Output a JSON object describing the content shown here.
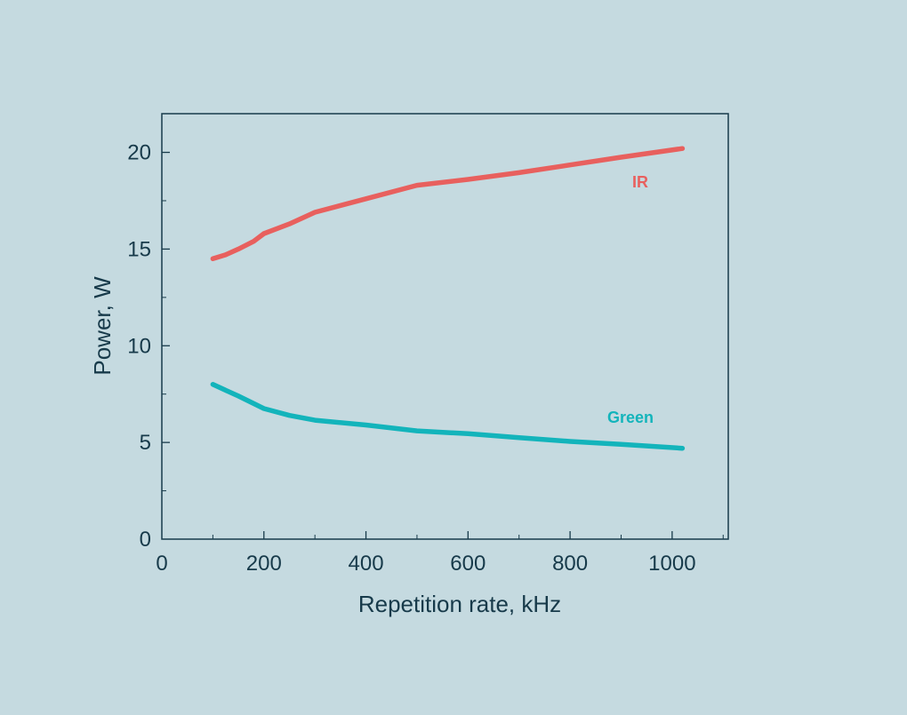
{
  "chart_data": {
    "type": "line",
    "title": "",
    "xlabel": "Repetition rate, kHz",
    "ylabel": "Power, W",
    "xlim": [
      0,
      1110
    ],
    "ylim": [
      0,
      22
    ],
    "xticks": [
      0,
      200,
      400,
      600,
      800,
      1000
    ],
    "xtick_labels": [
      "0",
      "200",
      "400",
      "600",
      "800",
      "1000"
    ],
    "yticks": [
      0,
      5,
      10,
      15,
      20
    ],
    "ytick_labels": [
      "0",
      "5",
      "10",
      "15",
      "20"
    ],
    "x_minor_step": 100,
    "y_minor_step": 2.5,
    "grid": false,
    "legend": "inline labels",
    "series": [
      {
        "name": "IR",
        "color": "#e8605e",
        "label_position": "upper-right",
        "x": [
          100,
          125,
          150,
          180,
          200,
          250,
          300,
          400,
          500,
          600,
          700,
          800,
          900,
          1020
        ],
        "y": [
          14.5,
          14.7,
          15.0,
          15.4,
          15.8,
          16.3,
          16.9,
          17.6,
          18.3,
          18.6,
          18.95,
          19.35,
          19.75,
          20.2
        ]
      },
      {
        "name": "Green",
        "color": "#13b4bb",
        "label_position": "right",
        "x": [
          100,
          150,
          200,
          250,
          300,
          400,
          500,
          600,
          700,
          800,
          900,
          1020
        ],
        "y": [
          8.0,
          7.4,
          6.75,
          6.4,
          6.15,
          5.9,
          5.6,
          5.45,
          5.25,
          5.05,
          4.9,
          4.7
        ]
      }
    ]
  },
  "colors": {
    "background": "#c5dae0",
    "axis": "#173a4a",
    "ir": "#e8605e",
    "green": "#13b4bb"
  }
}
